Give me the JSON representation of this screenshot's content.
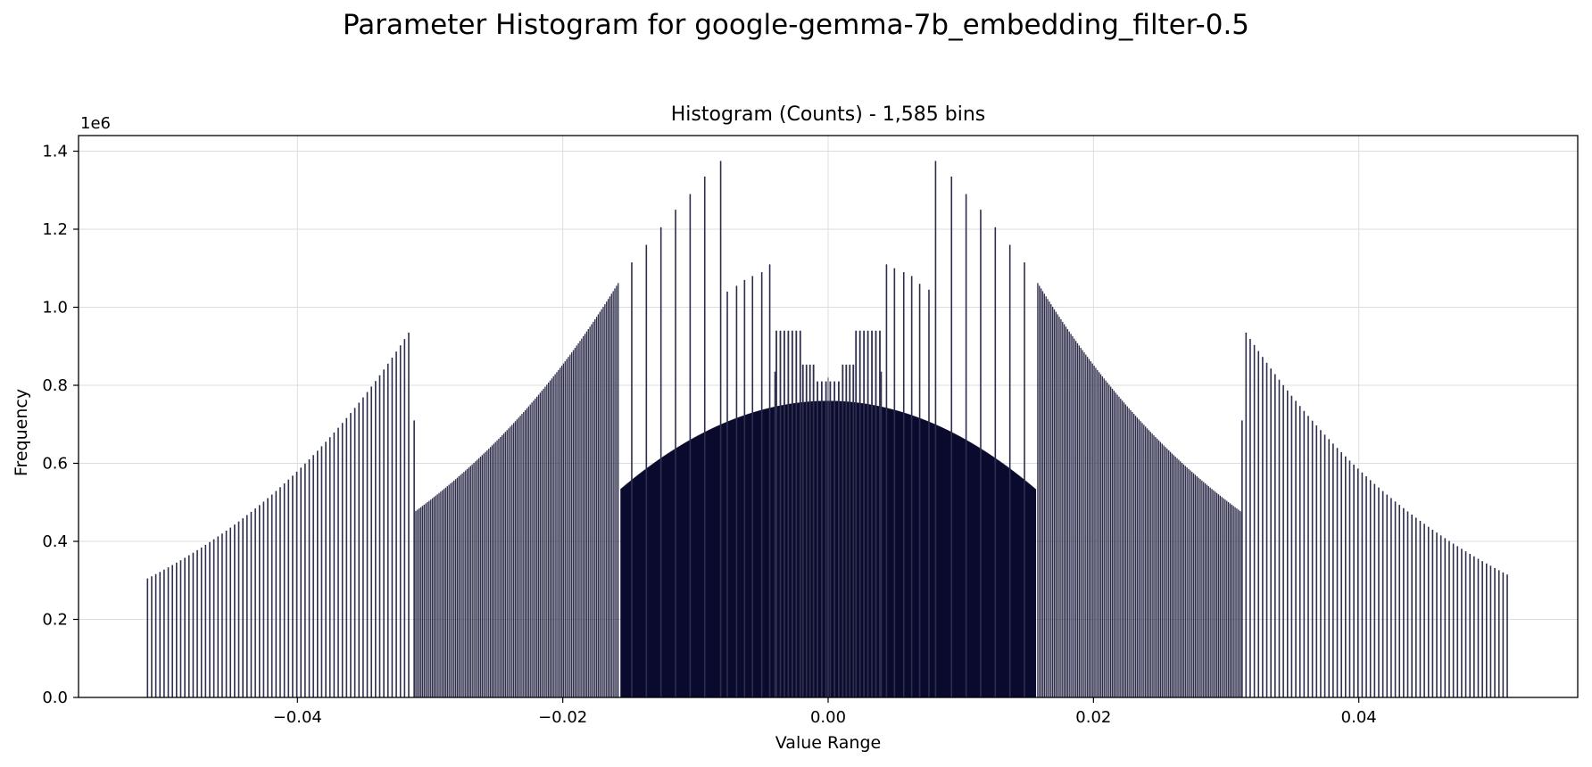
{
  "chart_data": {
    "type": "bar",
    "suptitle": "Parameter Histogram for google-gemma-7b_embedding_filter-0.5",
    "title": "Histogram (Counts) - 1,585 bins",
    "xlabel": "Value Range",
    "ylabel": "Frequency",
    "y_offset_label": "1e6",
    "xlim": [
      -0.0565,
      0.0565
    ],
    "ylim": [
      0,
      1.44
    ],
    "y_unit": 1000000,
    "xticks": [
      -0.04,
      -0.02,
      0.0,
      0.02,
      0.04
    ],
    "xtick_labels": [
      "−0.04",
      "−0.02",
      "0.00",
      "0.02",
      "0.04"
    ],
    "yticks": [
      0.0,
      0.2,
      0.4,
      0.6,
      0.8,
      1.0,
      1.2,
      1.4
    ],
    "ytick_labels": [
      "0.0",
      "0.2",
      "0.4",
      "0.6",
      "0.8",
      "1.0",
      "1.2",
      "1.4"
    ],
    "grid": true,
    "bar_color": "#0b0b2e",
    "sparse_bar_color": "#2e2e4c",
    "segments": [
      {
        "region": "outer-left",
        "x_start": -0.0513,
        "x_end": -0.0315,
        "step": 0.0003125,
        "y_start": 0.305,
        "y_end": 0.935
      },
      {
        "region": "left-dense",
        "x_start": -0.0312,
        "x_end": -0.0158,
        "step": 0.000125,
        "y_start": 0.475,
        "y_end": 1.062
      },
      {
        "region": "core",
        "x_start": -0.0156,
        "x_end": 0.0156,
        "step": 7e-05,
        "peak": 0.76,
        "edge": 0.535
      },
      {
        "region": "right-dense",
        "x_start": 0.0158,
        "x_end": 0.0312,
        "step": 0.000125,
        "y_start": 1.062,
        "y_end": 0.475
      },
      {
        "region": "outer-right",
        "x_start": 0.0315,
        "x_end": 0.0513,
        "step": 0.0003125,
        "y_start": 0.935,
        "y_end": 0.315
      }
    ],
    "spikes": [
      {
        "x": -0.0312,
        "y": 0.71
      },
      {
        "x": 0.0312,
        "y": 0.71
      },
      {
        "x": -0.0148,
        "y": 1.115
      },
      {
        "x": -0.0137,
        "y": 1.16
      },
      {
        "x": -0.0126,
        "y": 1.205
      },
      {
        "x": -0.0115,
        "y": 1.25
      },
      {
        "x": -0.0104,
        "y": 1.29
      },
      {
        "x": -0.0093,
        "y": 1.335
      },
      {
        "x": -0.0081,
        "y": 1.375
      },
      {
        "x": 0.0081,
        "y": 1.375
      },
      {
        "x": 0.0093,
        "y": 1.335
      },
      {
        "x": 0.0104,
        "y": 1.29
      },
      {
        "x": 0.0115,
        "y": 1.25
      },
      {
        "x": 0.0126,
        "y": 1.205
      },
      {
        "x": 0.0137,
        "y": 1.16
      },
      {
        "x": 0.0148,
        "y": 1.115
      },
      {
        "x": -0.0076,
        "y": 1.04
      },
      {
        "x": -0.0069,
        "y": 1.055
      },
      {
        "x": -0.0063,
        "y": 1.07
      },
      {
        "x": -0.0057,
        "y": 1.08
      },
      {
        "x": -0.005,
        "y": 1.09
      },
      {
        "x": -0.0044,
        "y": 1.11
      },
      {
        "x": 0.0044,
        "y": 1.11
      },
      {
        "x": 0.005,
        "y": 1.1
      },
      {
        "x": 0.0057,
        "y": 1.09
      },
      {
        "x": 0.0063,
        "y": 1.08
      },
      {
        "x": 0.0069,
        "y": 1.06
      },
      {
        "x": 0.0076,
        "y": 1.045
      },
      {
        "x": -0.004,
        "y": 0.835
      },
      {
        "x": 0.004,
        "y": 0.835
      }
    ],
    "clusters": [
      {
        "x_start": -0.0039,
        "x_end": -0.0021,
        "count": 7,
        "y": 0.94
      },
      {
        "x_start": 0.0021,
        "x_end": 0.0039,
        "count": 7,
        "y": 0.94
      },
      {
        "x_start": -0.0019,
        "x_end": -0.0011,
        "count": 4,
        "y": 0.853
      },
      {
        "x_start": 0.0011,
        "x_end": 0.0019,
        "count": 4,
        "y": 0.853
      },
      {
        "x_start": -0.0008,
        "x_end": 0.0008,
        "count": 6,
        "y": 0.81
      }
    ]
  }
}
